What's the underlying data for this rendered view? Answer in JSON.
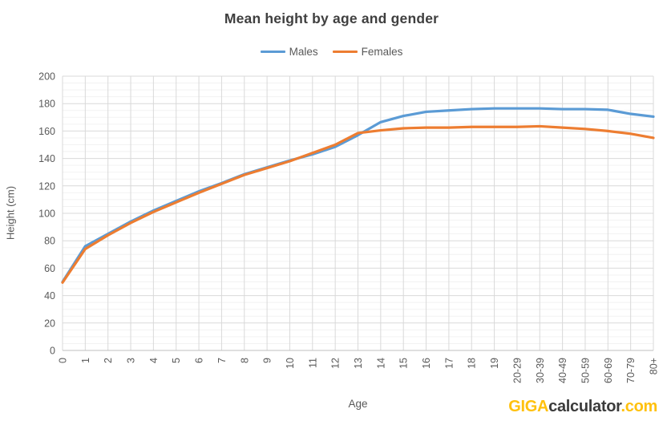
{
  "header": {
    "title": "Mean height by age and gender"
  },
  "axes": {
    "x_title": "Age",
    "y_title": "Height (cm)"
  },
  "logo": {
    "part1": "GIGA",
    "part2": "calculator",
    "part3": ".com"
  },
  "colors": {
    "males_line": "#5B9BD5",
    "females_line": "#ED7D31",
    "title_text": "#3F3F3F",
    "axis_text": "#595959",
    "major_grid": "#D9D9D9",
    "minor_grid": "#F2F2F2",
    "axis_line": "#BFBFBF",
    "logo_accent": "#FFC10E",
    "logo_dark": "#3B3B3B",
    "background": "#FFFFFF"
  },
  "chart_data": {
    "type": "line",
    "title": "Mean height by age and gender",
    "xlabel": "Age",
    "ylabel": "Height (cm)",
    "ylim": [
      0,
      200
    ],
    "ytick_step": 20,
    "minor_ytick_step": 5,
    "grid": "major-horizontal, minor-horizontal, vertical-per-category",
    "legend_position": "top",
    "categories": [
      "0",
      "1",
      "2",
      "3",
      "4",
      "5",
      "6",
      "7",
      "8",
      "9",
      "10",
      "11",
      "12",
      "13",
      "14",
      "15",
      "16",
      "17",
      "18",
      "19",
      "20-29",
      "30-39",
      "40-49",
      "50-59",
      "60-69",
      "70-79",
      "80+"
    ],
    "series": [
      {
        "name": "Males",
        "color": "#5B9BD5",
        "values": [
          50,
          76,
          85,
          94,
          102,
          109,
          116,
          122,
          128.5,
          133.5,
          138.5,
          143,
          148.5,
          157,
          166.5,
          171,
          174,
          175,
          176,
          176.5,
          176.5,
          176.5,
          176,
          176,
          175.5,
          172.5,
          170.5
        ]
      },
      {
        "name": "Females",
        "color": "#ED7D31",
        "values": [
          49.5,
          74,
          84,
          93,
          101,
          108,
          115,
          121.5,
          128,
          133,
          138,
          144,
          150,
          158.5,
          160.5,
          162,
          162.5,
          162.5,
          163,
          163,
          163,
          163.5,
          162.5,
          161.5,
          160,
          158,
          155
        ]
      }
    ]
  }
}
